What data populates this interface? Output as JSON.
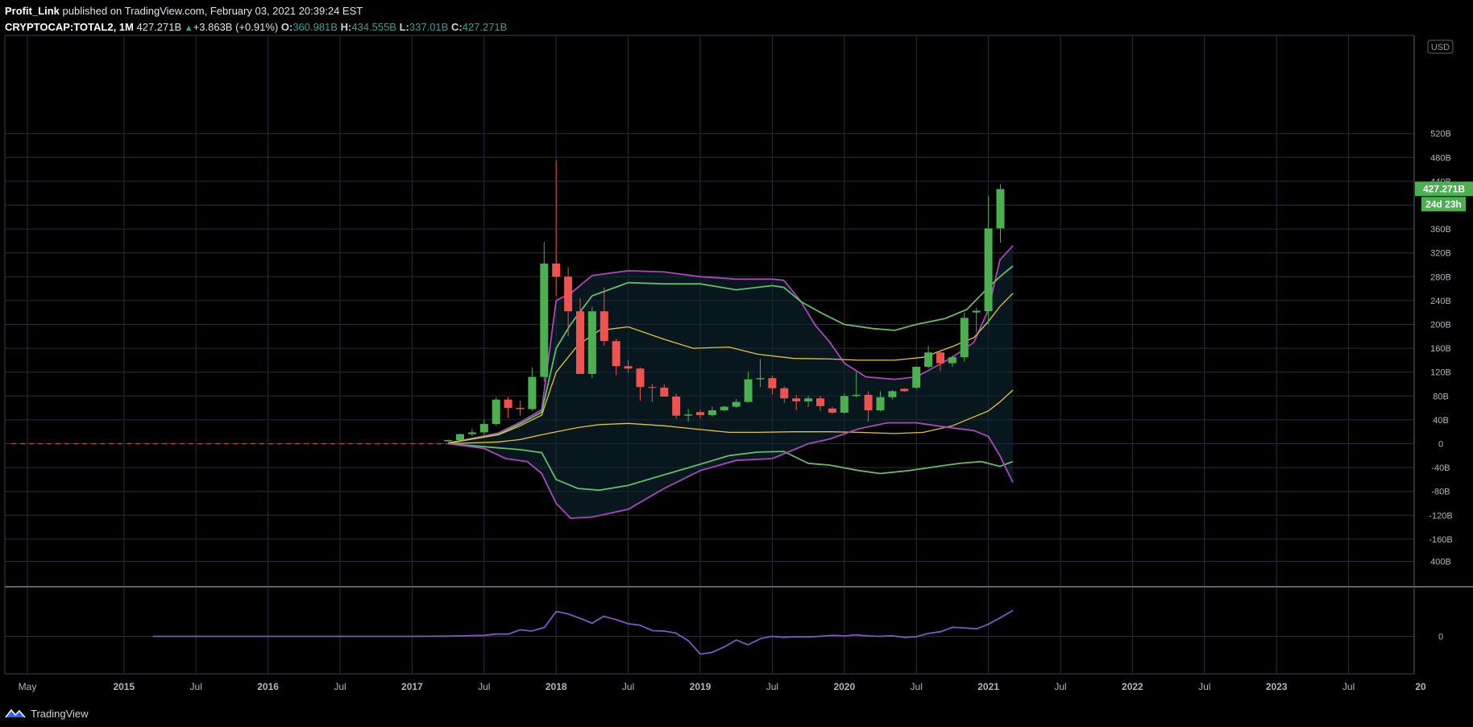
{
  "header": {
    "author": "Profit_Link",
    "published_text": "published on TradingView.com, February 03, 2021 20:39:24 EST",
    "symbol": "CRYPTOCAP:TOTAL2, 1M",
    "last": "427.271B",
    "change": "+3.863B (+0.91%)",
    "o_label": "O:",
    "o": "360.981B",
    "h_label": "H:",
    "h": "434.555B",
    "l_label": "L:",
    "l": "337.01B",
    "c_label": "C:",
    "c": "427.271B"
  },
  "currency_badge": "USD",
  "price_tag": "427.271B",
  "countdown_tag": "24d 23h",
  "footer": {
    "brand": "TradingView"
  },
  "colors": {
    "up": "#4caf50",
    "down": "#ef5350",
    "outer_band": "#ab47bc",
    "mid_band": "#66bb6a",
    "inner_band": "#e6c234",
    "oscillator": "#7e57c2",
    "grid": "#2a2e39",
    "text": "#b2b5be",
    "fill": "#0f2a35"
  },
  "chart_data": {
    "type": "candlestick",
    "timeframe": "1M",
    "x_ticks": [
      "May",
      "2015",
      "Jul",
      "2016",
      "Jul",
      "2017",
      "Jul",
      "2018",
      "Jul",
      "2019",
      "Jul",
      "2020",
      "Jul",
      "2021",
      "Jul",
      "2022",
      "Jul",
      "2023",
      "Jul",
      "20"
    ],
    "y_ticks_main": [
      "520B",
      "480B",
      "440B",
      "400B",
      "360B",
      "320B",
      "280B",
      "240B",
      "200B",
      "160B",
      "120B",
      "80B",
      "40B",
      "0",
      "-40B",
      "-80B",
      "-120B",
      "-160B"
    ],
    "y_ticks_sub": [
      "400B",
      "0"
    ],
    "ylim_main": [
      -190,
      530
    ],
    "candles": [
      {
        "t": "2017-04",
        "o": 4,
        "h": 7,
        "l": 3,
        "c": 6
      },
      {
        "t": "2017-05",
        "o": 6,
        "h": 17,
        "l": 5,
        "c": 16
      },
      {
        "t": "2017-06",
        "o": 16,
        "h": 25,
        "l": 12,
        "c": 19
      },
      {
        "t": "2017-07",
        "o": 19,
        "h": 40,
        "l": 15,
        "c": 33
      },
      {
        "t": "2017-08",
        "o": 33,
        "h": 78,
        "l": 30,
        "c": 74
      },
      {
        "t": "2017-09",
        "o": 74,
        "h": 78,
        "l": 43,
        "c": 60
      },
      {
        "t": "2017-10",
        "o": 60,
        "h": 72,
        "l": 47,
        "c": 58
      },
      {
        "t": "2017-11",
        "o": 58,
        "h": 128,
        "l": 55,
        "c": 112
      },
      {
        "t": "2017-12",
        "o": 112,
        "h": 338,
        "l": 104,
        "c": 302
      },
      {
        "t": "2018-01",
        "o": 302,
        "h": 475,
        "l": 248,
        "c": 280
      },
      {
        "t": "2018-02",
        "o": 280,
        "h": 296,
        "l": 180,
        "c": 222
      },
      {
        "t": "2018-03",
        "o": 222,
        "h": 244,
        "l": 117,
        "c": 117
      },
      {
        "t": "2018-04",
        "o": 117,
        "h": 230,
        "l": 110,
        "c": 222
      },
      {
        "t": "2018-05",
        "o": 222,
        "h": 262,
        "l": 164,
        "c": 172
      },
      {
        "t": "2018-06",
        "o": 172,
        "h": 176,
        "l": 115,
        "c": 130
      },
      {
        "t": "2018-07",
        "o": 130,
        "h": 140,
        "l": 119,
        "c": 126
      },
      {
        "t": "2018-08",
        "o": 126,
        "h": 128,
        "l": 72,
        "c": 95
      },
      {
        "t": "2018-09",
        "o": 95,
        "h": 100,
        "l": 70,
        "c": 94
      },
      {
        "t": "2018-10",
        "o": 94,
        "h": 99,
        "l": 82,
        "c": 79
      },
      {
        "t": "2018-11",
        "o": 79,
        "h": 84,
        "l": 42,
        "c": 47
      },
      {
        "t": "2018-12",
        "o": 47,
        "h": 58,
        "l": 37,
        "c": 49
      },
      {
        "t": "2019-01",
        "o": 53,
        "h": 57,
        "l": 43,
        "c": 48
      },
      {
        "t": "2019-02",
        "o": 48,
        "h": 62,
        "l": 45,
        "c": 56
      },
      {
        "t": "2019-03",
        "o": 56,
        "h": 64,
        "l": 54,
        "c": 62
      },
      {
        "t": "2019-04",
        "o": 62,
        "h": 75,
        "l": 60,
        "c": 70
      },
      {
        "t": "2019-05",
        "o": 70,
        "h": 121,
        "l": 69,
        "c": 108
      },
      {
        "t": "2019-06",
        "o": 108,
        "h": 142,
        "l": 95,
        "c": 110
      },
      {
        "t": "2019-07",
        "o": 110,
        "h": 114,
        "l": 82,
        "c": 93
      },
      {
        "t": "2019-08",
        "o": 93,
        "h": 96,
        "l": 68,
        "c": 76
      },
      {
        "t": "2019-09",
        "o": 76,
        "h": 82,
        "l": 56,
        "c": 71
      },
      {
        "t": "2019-10",
        "o": 71,
        "h": 80,
        "l": 62,
        "c": 76
      },
      {
        "t": "2019-11",
        "o": 76,
        "h": 80,
        "l": 55,
        "c": 63
      },
      {
        "t": "2019-12",
        "o": 59,
        "h": 62,
        "l": 50,
        "c": 52
      },
      {
        "t": "2020-01",
        "o": 52,
        "h": 84,
        "l": 50,
        "c": 80
      },
      {
        "t": "2020-02",
        "o": 80,
        "h": 120,
        "l": 78,
        "c": 82
      },
      {
        "t": "2020-03",
        "o": 82,
        "h": 88,
        "l": 37,
        "c": 56
      },
      {
        "t": "2020-04",
        "o": 56,
        "h": 88,
        "l": 54,
        "c": 78
      },
      {
        "t": "2020-05",
        "o": 78,
        "h": 90,
        "l": 74,
        "c": 88
      },
      {
        "t": "2020-06",
        "o": 92,
        "h": 93,
        "l": 87,
        "c": 88
      },
      {
        "t": "2020-07",
        "o": 94,
        "h": 130,
        "l": 92,
        "c": 129
      },
      {
        "t": "2020-08",
        "o": 129,
        "h": 164,
        "l": 126,
        "c": 153
      },
      {
        "t": "2020-09",
        "o": 153,
        "h": 158,
        "l": 122,
        "c": 135
      },
      {
        "t": "2020-10",
        "o": 135,
        "h": 148,
        "l": 129,
        "c": 145
      },
      {
        "t": "2020-11",
        "o": 145,
        "h": 220,
        "l": 138,
        "c": 211
      },
      {
        "t": "2020-12",
        "o": 220,
        "h": 228,
        "l": 186,
        "c": 223
      },
      {
        "t": "2021-01",
        "o": 222,
        "h": 415,
        "l": 200,
        "c": 361
      },
      {
        "t": "2021-02",
        "o": 361,
        "h": 435,
        "l": 337,
        "c": 427
      }
    ],
    "series": [
      {
        "key": "outer_upper",
        "values": [
          [
            2017.25,
            1
          ],
          [
            2017.6,
            18
          ],
          [
            2017.75,
            36
          ],
          [
            2017.9,
            57
          ],
          [
            2018.0,
            240
          ],
          [
            2018.1,
            252
          ],
          [
            2018.25,
            282
          ],
          [
            2018.5,
            290
          ],
          [
            2018.75,
            288
          ],
          [
            2019.0,
            280
          ],
          [
            2019.25,
            276
          ],
          [
            2019.5,
            276
          ],
          [
            2019.58,
            274
          ],
          [
            2019.7,
            238
          ],
          [
            2019.8,
            198
          ],
          [
            2019.9,
            170
          ],
          [
            2020.0,
            135
          ],
          [
            2020.15,
            112
          ],
          [
            2020.35,
            108
          ],
          [
            2020.5,
            112
          ],
          [
            2020.6,
            125
          ],
          [
            2020.75,
            145
          ],
          [
            2020.9,
            170
          ],
          [
            2021.0,
            225
          ],
          [
            2021.08,
            308
          ],
          [
            2021.17,
            332
          ]
        ]
      },
      {
        "key": "mid_upper",
        "values": [
          [
            2017.25,
            1
          ],
          [
            2017.6,
            16
          ],
          [
            2017.75,
            33
          ],
          [
            2017.9,
            53
          ],
          [
            2018.0,
            160
          ],
          [
            2018.1,
            200
          ],
          [
            2018.25,
            248
          ],
          [
            2018.5,
            270
          ],
          [
            2018.75,
            268
          ],
          [
            2019.0,
            268
          ],
          [
            2019.25,
            258
          ],
          [
            2019.5,
            265
          ],
          [
            2019.58,
            262
          ],
          [
            2019.7,
            238
          ],
          [
            2019.85,
            218
          ],
          [
            2020.0,
            200
          ],
          [
            2020.2,
            193
          ],
          [
            2020.35,
            190
          ],
          [
            2020.5,
            200
          ],
          [
            2020.7,
            210
          ],
          [
            2020.85,
            225
          ],
          [
            2021.0,
            262
          ],
          [
            2021.08,
            280
          ],
          [
            2021.17,
            298
          ]
        ]
      },
      {
        "key": "inner_upper",
        "values": [
          [
            2017.25,
            1
          ],
          [
            2017.6,
            15
          ],
          [
            2017.75,
            30
          ],
          [
            2017.9,
            48
          ],
          [
            2018.0,
            120
          ],
          [
            2018.15,
            165
          ],
          [
            2018.3,
            190
          ],
          [
            2018.5,
            196
          ],
          [
            2018.75,
            175
          ],
          [
            2018.95,
            160
          ],
          [
            2019.2,
            162
          ],
          [
            2019.4,
            150
          ],
          [
            2019.65,
            143
          ],
          [
            2019.9,
            142
          ],
          [
            2020.1,
            140
          ],
          [
            2020.35,
            140
          ],
          [
            2020.55,
            145
          ],
          [
            2020.75,
            163
          ],
          [
            2020.9,
            178
          ],
          [
            2021.0,
            205
          ],
          [
            2021.08,
            230
          ],
          [
            2021.17,
            252
          ]
        ]
      },
      {
        "key": "inner_lower",
        "values": [
          [
            2017.25,
            0
          ],
          [
            2017.6,
            3
          ],
          [
            2017.75,
            7
          ],
          [
            2017.9,
            15
          ],
          [
            2018.0,
            20
          ],
          [
            2018.15,
            27
          ],
          [
            2018.3,
            32
          ],
          [
            2018.5,
            34
          ],
          [
            2018.75,
            30
          ],
          [
            2018.95,
            25
          ],
          [
            2019.2,
            19
          ],
          [
            2019.4,
            19
          ],
          [
            2019.65,
            20
          ],
          [
            2019.9,
            20
          ],
          [
            2020.1,
            19
          ],
          [
            2020.35,
            17
          ],
          [
            2020.55,
            19
          ],
          [
            2020.75,
            30
          ],
          [
            2020.9,
            45
          ],
          [
            2021.0,
            55
          ],
          [
            2021.08,
            70
          ],
          [
            2021.17,
            90
          ]
        ]
      },
      {
        "key": "mid_lower",
        "values": [
          [
            2017.25,
            0
          ],
          [
            2017.6,
            -7
          ],
          [
            2017.75,
            -10
          ],
          [
            2017.9,
            -15
          ],
          [
            2018.0,
            -60
          ],
          [
            2018.15,
            -75
          ],
          [
            2018.3,
            -78
          ],
          [
            2018.5,
            -70
          ],
          [
            2018.75,
            -52
          ],
          [
            2018.95,
            -38
          ],
          [
            2019.2,
            -20
          ],
          [
            2019.4,
            -14
          ],
          [
            2019.58,
            -13
          ],
          [
            2019.75,
            -33
          ],
          [
            2019.9,
            -36
          ],
          [
            2020.1,
            -45
          ],
          [
            2020.25,
            -50
          ],
          [
            2020.45,
            -45
          ],
          [
            2020.65,
            -38
          ],
          [
            2020.8,
            -33
          ],
          [
            2020.95,
            -30
          ],
          [
            2021.08,
            -38
          ],
          [
            2021.17,
            -30
          ]
        ]
      },
      {
        "key": "outer_lower",
        "values": [
          [
            2017.25,
            0
          ],
          [
            2017.5,
            -8
          ],
          [
            2017.65,
            -25
          ],
          [
            2017.8,
            -30
          ],
          [
            2017.9,
            -50
          ],
          [
            2018.0,
            -100
          ],
          [
            2018.1,
            -125
          ],
          [
            2018.25,
            -123
          ],
          [
            2018.5,
            -110
          ],
          [
            2018.75,
            -75
          ],
          [
            2019.0,
            -45
          ],
          [
            2019.25,
            -28
          ],
          [
            2019.5,
            -25
          ],
          [
            2019.75,
            0
          ],
          [
            2019.9,
            8
          ],
          [
            2020.1,
            25
          ],
          [
            2020.3,
            35
          ],
          [
            2020.5,
            35
          ],
          [
            2020.7,
            28
          ],
          [
            2020.9,
            22
          ],
          [
            2021.0,
            12
          ],
          [
            2021.08,
            -20
          ],
          [
            2021.17,
            -65
          ]
        ]
      }
    ],
    "oscillator": {
      "ylim": [
        -100,
        140
      ],
      "values": [
        [
          2015.2,
          0
        ],
        [
          2016.5,
          0
        ],
        [
          2017.0,
          0
        ],
        [
          2017.25,
          1
        ],
        [
          2017.5,
          5
        ],
        [
          2017.58,
          12
        ],
        [
          2017.67,
          12
        ],
        [
          2017.75,
          35
        ],
        [
          2017.83,
          28
        ],
        [
          2017.92,
          48
        ],
        [
          2018.0,
          133
        ],
        [
          2018.08,
          120
        ],
        [
          2018.17,
          95
        ],
        [
          2018.25,
          70
        ],
        [
          2018.33,
          107
        ],
        [
          2018.42,
          88
        ],
        [
          2018.5,
          67
        ],
        [
          2018.58,
          60
        ],
        [
          2018.67,
          30
        ],
        [
          2018.75,
          28
        ],
        [
          2018.83,
          18
        ],
        [
          2018.92,
          -25
        ],
        [
          2019.0,
          -95
        ],
        [
          2019.08,
          -86
        ],
        [
          2019.17,
          -55
        ],
        [
          2019.25,
          -20
        ],
        [
          2019.33,
          -45
        ],
        [
          2019.42,
          -12
        ],
        [
          2019.5,
          0
        ],
        [
          2019.58,
          -5
        ],
        [
          2019.67,
          -2
        ],
        [
          2019.75,
          -3
        ],
        [
          2019.83,
          0
        ],
        [
          2019.92,
          5
        ],
        [
          2020.0,
          2
        ],
        [
          2020.08,
          8
        ],
        [
          2020.17,
          2
        ],
        [
          2020.25,
          0
        ],
        [
          2020.33,
          3
        ],
        [
          2020.42,
          -6
        ],
        [
          2020.5,
          -2
        ],
        [
          2020.58,
          15
        ],
        [
          2020.67,
          25
        ],
        [
          2020.75,
          48
        ],
        [
          2020.83,
          45
        ],
        [
          2020.92,
          40
        ],
        [
          2021.0,
          65
        ],
        [
          2021.08,
          98
        ],
        [
          2021.17,
          138
        ]
      ]
    }
  }
}
